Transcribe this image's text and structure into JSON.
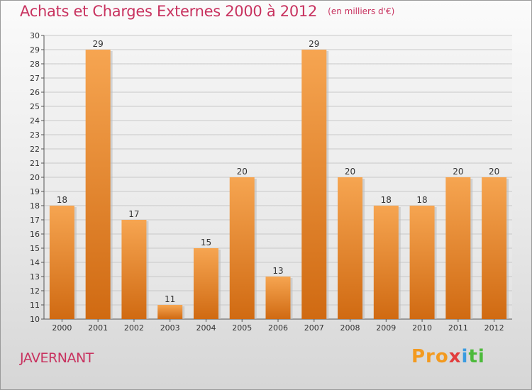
{
  "header": {
    "title": "Achats et Charges Externes 2000 à 2012",
    "unit": "(en milliers d'€)"
  },
  "footer": {
    "commune": "JAVERNANT",
    "logo": "Proxiti"
  },
  "colors": {
    "bar_light": "#f6a551",
    "bar_dark": "#d06a12",
    "title": "#c8325f",
    "grid": "#c8c8c8"
  },
  "chart_data": {
    "type": "bar",
    "title": "Achats et Charges Externes 2000 à 2012",
    "subtitle": "(en milliers d'€)",
    "categories": [
      "2000",
      "2001",
      "2002",
      "2003",
      "2004",
      "2005",
      "2006",
      "2007",
      "2008",
      "2009",
      "2010",
      "2011",
      "2012"
    ],
    "values": [
      18,
      29,
      17,
      11,
      15,
      20,
      13,
      29,
      20,
      18,
      18,
      20,
      20
    ],
    "xlabel": "",
    "ylabel": "",
    "ylim": [
      10,
      30
    ],
    "yticks": [
      10,
      11,
      12,
      13,
      14,
      15,
      16,
      17,
      18,
      19,
      20,
      21,
      22,
      23,
      24,
      25,
      26,
      27,
      28,
      29,
      30
    ],
    "grid": true,
    "data_labels": true
  }
}
